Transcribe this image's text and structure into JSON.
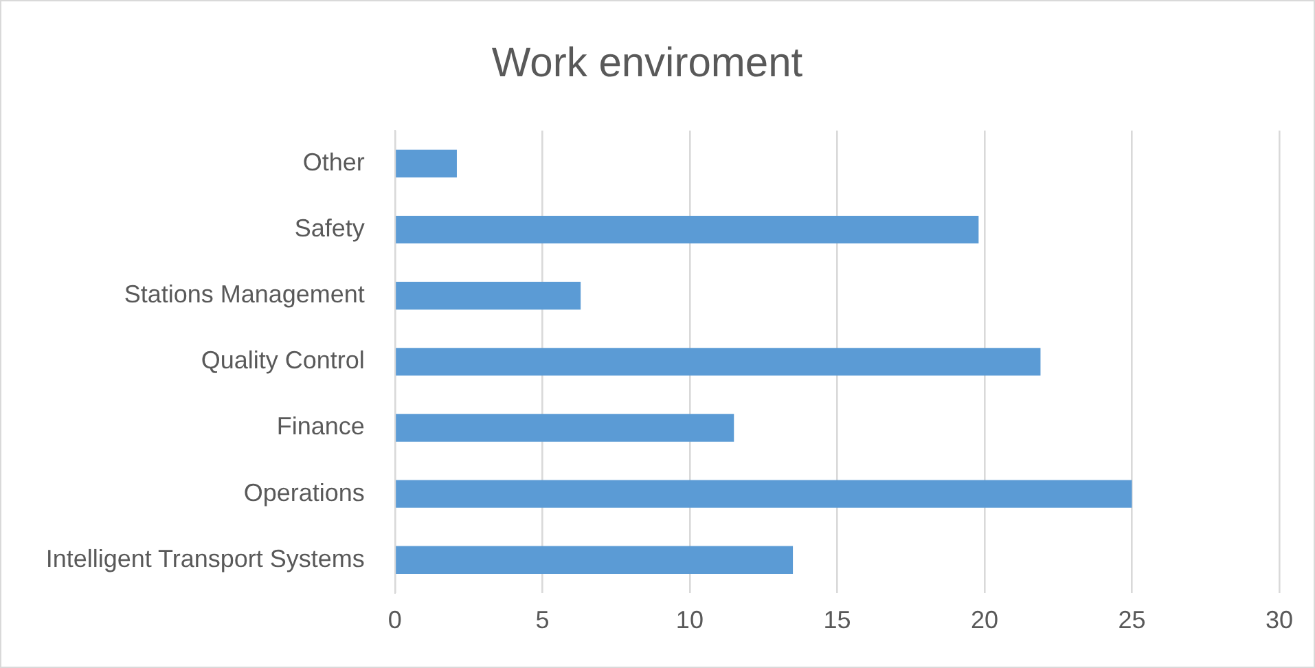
{
  "chart_data": {
    "type": "bar",
    "orientation": "horizontal",
    "title": "Work enviroment",
    "categories": [
      "Other",
      "Safety",
      "Stations Management",
      "Quality Control",
      "Finance",
      "Operations",
      "Intelligent Transport Systems"
    ],
    "values": [
      2.1,
      19.8,
      6.3,
      21.9,
      11.5,
      25,
      13.5
    ],
    "color": "#5b9bd5",
    "xlim": [
      0,
      30
    ],
    "xticks": [
      0,
      5,
      10,
      15,
      20,
      25,
      30
    ],
    "grid": "x",
    "legend": false
  }
}
